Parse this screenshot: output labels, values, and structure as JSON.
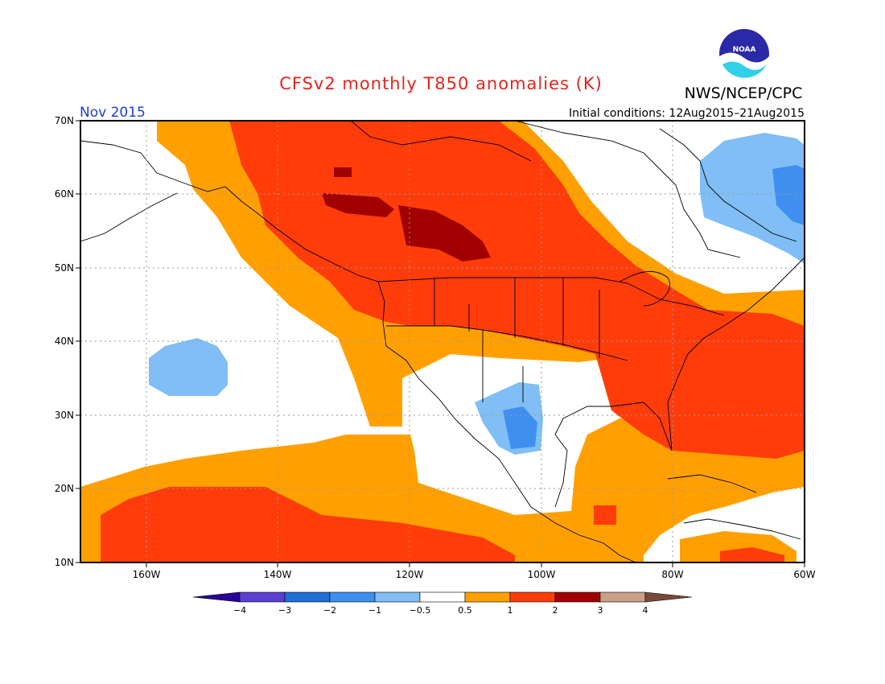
{
  "header": {
    "title": "CFSv2 monthly T850 anomalies (K)",
    "agency": "NWS/NCEP/CPC",
    "logo_text": "NOAA",
    "month": "Nov 2015",
    "initial_conditions": "Initial conditions: 12Aug2015–21Aug2015"
  },
  "map": {
    "lat_labels": [
      "70N",
      "60N",
      "50N",
      "40N",
      "30N",
      "20N",
      "10N"
    ],
    "lon_labels": [
      "160W",
      "140W",
      "120W",
      "100W",
      "80W",
      "60W"
    ]
  },
  "legend": {
    "tick_labels": [
      "−4",
      "−3",
      "−2",
      "−1",
      "−0.5",
      "0.5",
      "1",
      "2",
      "3",
      "4"
    ],
    "colors": [
      "#2a0099",
      "#5a3fd0",
      "#1f6fd6",
      "#3f8ff0",
      "#80bef5",
      "#ffffff",
      "#ffa000",
      "#ff3c0a",
      "#a00000",
      "#c9a08a",
      "#7a4a3a"
    ]
  },
  "colors": {
    "title": "#e8231b",
    "month_label": "#1d3fd8",
    "text": "#000000",
    "weak_warm": "#ffa000",
    "warm": "#ff3c0a",
    "strong_warm": "#a00000",
    "weak_cold": "#80bef5",
    "cold": "#3f8ff0"
  }
}
